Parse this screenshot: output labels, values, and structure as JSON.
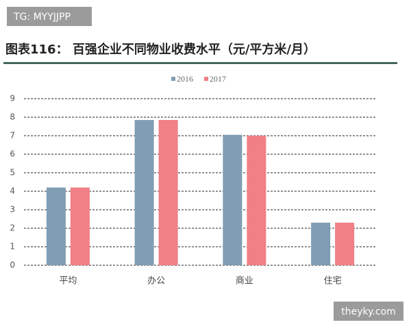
{
  "watermarks": [
    "TG: MYYJJPP",
    "theyky.com"
  ],
  "chart_data": {
    "type": "bar",
    "title": "图表116： 百强企业不同物业收费水平（元/平方米/月）",
    "categories": [
      "平均",
      "办公",
      "商业",
      "住宅"
    ],
    "series": [
      {
        "name": "2016",
        "color": "#7f9db3",
        "values": [
          4.2,
          7.85,
          7.05,
          2.3
        ]
      },
      {
        "name": "2017",
        "color": "#f07f86",
        "values": [
          4.2,
          7.85,
          7.0,
          2.3
        ]
      }
    ],
    "ylim": [
      0,
      9
    ],
    "yticks": [
      0,
      1,
      2,
      3,
      4,
      5,
      6,
      7,
      8,
      9
    ],
    "grid": true
  }
}
